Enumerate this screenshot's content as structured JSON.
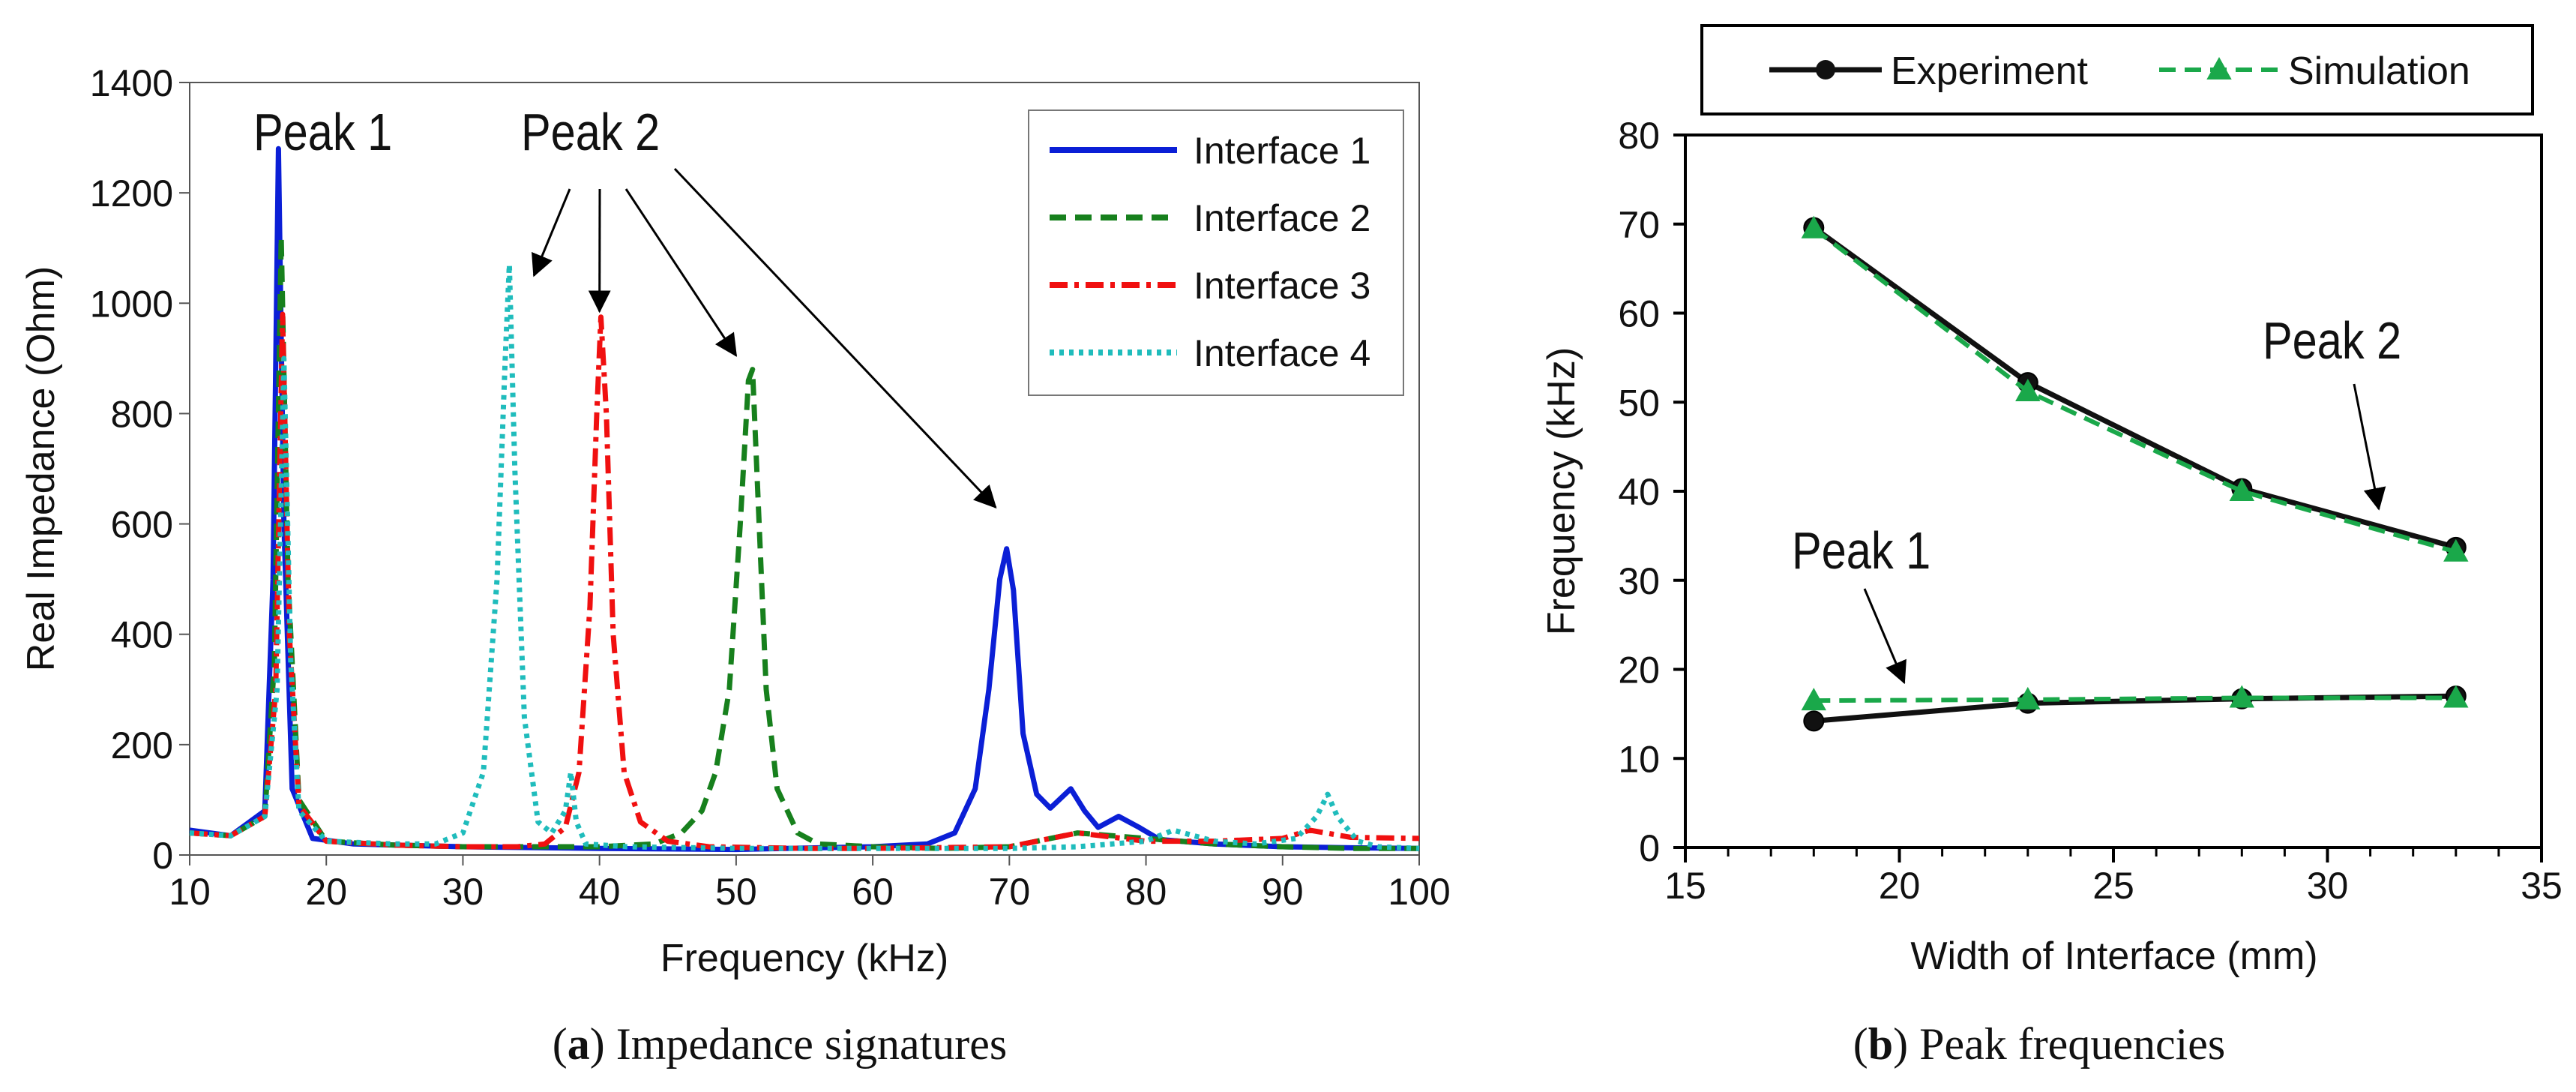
{
  "colors": {
    "interface_1": "#0b1fd6",
    "interface_2": "#17801d",
    "interface_3": "#f01010",
    "interface_4": "#1fbcbc",
    "experiment": "#111111",
    "simulation": "#1aa84a"
  },
  "chart_data": [
    {
      "id": "panel_a",
      "type": "line",
      "xlabel": "Frequency (kHz)",
      "ylabel": "Real Impedance (Ohm)",
      "xlim": [
        10,
        100
      ],
      "ylim": [
        0,
        1400
      ],
      "xticks": [
        10,
        20,
        30,
        40,
        50,
        60,
        70,
        80,
        90,
        100
      ],
      "yticks": [
        0,
        200,
        400,
        600,
        800,
        1000,
        1200,
        1400
      ],
      "legend_position": "top-right",
      "caption": {
        "open": "(",
        "label": "a",
        "close": ")",
        "text": " Impedance signatures"
      },
      "annotations": {
        "peak1": {
          "text": "Peak 1",
          "x": 16.5,
          "y": 1275
        },
        "peak2": {
          "text": "Peak 2",
          "arrow_targets": [
            [
              35.2,
              1050
            ],
            [
              40.0,
              985
            ],
            [
              50.0,
              905
            ],
            [
              69.0,
              630
            ]
          ]
        }
      },
      "series": [
        {
          "name": "Interface 1",
          "style": "solid",
          "color_key": "interface_1",
          "x": [
            10,
            13,
            15.5,
            16.1,
            16.5,
            16.9,
            17.5,
            19,
            22,
            30,
            40,
            50,
            60,
            64,
            66,
            67.5,
            68.5,
            69.3,
            69.8,
            70.3,
            71,
            72,
            73,
            74.5,
            75.5,
            76.5,
            78,
            79.5,
            81,
            85,
            90,
            95,
            100
          ],
          "y": [
            45,
            35,
            80,
            500,
            1280,
            600,
            120,
            30,
            20,
            15,
            12,
            10,
            15,
            20,
            40,
            120,
            300,
            500,
            555,
            480,
            220,
            110,
            85,
            120,
            80,
            50,
            70,
            50,
            28,
            20,
            15,
            13,
            12
          ]
        },
        {
          "name": "Interface 2",
          "style": "dashed",
          "color_key": "interface_2",
          "x": [
            10,
            13,
            15.5,
            16.2,
            16.7,
            17.2,
            18,
            20,
            25,
            30,
            35,
            40,
            44,
            46,
            47.5,
            48.5,
            49.5,
            50.3,
            50.9,
            51.2,
            51.6,
            52.2,
            53,
            54.5,
            56,
            60,
            65,
            70,
            75,
            80,
            85,
            90,
            95,
            100
          ],
          "y": [
            40,
            35,
            70,
            350,
            1120,
            500,
            100,
            25,
            18,
            15,
            15,
            15,
            20,
            40,
            80,
            150,
            300,
            600,
            860,
            880,
            650,
            300,
            120,
            40,
            20,
            15,
            12,
            15,
            40,
            30,
            20,
            15,
            12,
            12
          ]
        },
        {
          "name": "Interface 3",
          "style": "dashdot",
          "color_key": "interface_3",
          "x": [
            10,
            13,
            15.5,
            16.3,
            16.8,
            17.3,
            18,
            20,
            25,
            30,
            34,
            36,
            37.5,
            38.5,
            39.3,
            39.8,
            40.1,
            40.5,
            41,
            41.8,
            43,
            45,
            48,
            55,
            60,
            70,
            75,
            80,
            85,
            90,
            92,
            95,
            100
          ],
          "y": [
            40,
            35,
            70,
            300,
            980,
            400,
            90,
            25,
            18,
            15,
            15,
            20,
            50,
            150,
            450,
            800,
            975,
            800,
            400,
            150,
            60,
            25,
            15,
            12,
            12,
            15,
            40,
            25,
            25,
            30,
            45,
            32,
            30
          ]
        },
        {
          "name": "Interface 4",
          "style": "dotted",
          "color_key": "interface_4",
          "x": [
            10,
            13,
            15.5,
            16.4,
            16.9,
            17.4,
            18,
            20,
            25,
            28,
            30,
            31.5,
            32.5,
            33.1,
            33.4,
            33.8,
            34.5,
            35.5,
            36.5,
            37.5,
            37.9,
            38.3,
            39,
            42,
            50,
            60,
            70,
            75,
            80,
            82,
            85,
            88,
            91,
            92.5,
            93.3,
            94,
            95.5,
            97,
            100
          ],
          "y": [
            40,
            35,
            70,
            300,
            900,
            350,
            80,
            25,
            20,
            20,
            40,
            150,
            500,
            900,
            1070,
            700,
            250,
            60,
            40,
            80,
            150,
            60,
            20,
            15,
            12,
            12,
            12,
            15,
            25,
            45,
            25,
            20,
            30,
            70,
            110,
            70,
            25,
            15,
            12
          ]
        }
      ]
    },
    {
      "id": "panel_b",
      "type": "line",
      "xlabel": "Width of Interface (mm)",
      "ylabel": "Frequency (kHz)",
      "xlim": [
        15,
        35
      ],
      "ylim": [
        0,
        80
      ],
      "xticks": [
        15,
        20,
        25,
        30,
        35
      ],
      "yticks": [
        0,
        10,
        20,
        30,
        40,
        50,
        60,
        70,
        80
      ],
      "legend_position": "top-center-outside",
      "caption": {
        "open": "(",
        "label": "b",
        "close": ")",
        "text": " Peak frequencies"
      },
      "annotations": {
        "peak1": {
          "text": "Peak 1",
          "arrow_target": [
            20,
            18.5
          ]
        },
        "peak2": {
          "text": "Peak 2",
          "arrow_target": [
            31.2,
            38
          ]
        }
      },
      "series": [
        {
          "name": "Experiment",
          "group": "Peak 1",
          "style": "solid",
          "marker": "circle",
          "color_key": "experiment",
          "x": [
            18,
            23,
            28,
            33
          ],
          "y": [
            14.2,
            16.2,
            16.7,
            17.0
          ]
        },
        {
          "name": "Simulation",
          "group": "Peak 1",
          "style": "dashed",
          "marker": "triangle",
          "color_key": "simulation",
          "x": [
            18,
            23,
            28,
            33
          ],
          "y": [
            16.5,
            16.6,
            16.8,
            16.8
          ]
        },
        {
          "name": "Experiment",
          "group": "Peak 2",
          "style": "solid",
          "marker": "circle",
          "color_key": "experiment",
          "x": [
            18,
            23,
            28,
            33
          ],
          "y": [
            69.6,
            52.2,
            40.3,
            33.7
          ]
        },
        {
          "name": "Simulation",
          "group": "Peak 2",
          "style": "dashed",
          "marker": "triangle",
          "color_key": "simulation",
          "x": [
            18,
            23,
            28,
            33
          ],
          "y": [
            69.5,
            51.2,
            40.0,
            33.2
          ]
        }
      ],
      "legend": [
        "Experiment",
        "Simulation"
      ]
    }
  ]
}
